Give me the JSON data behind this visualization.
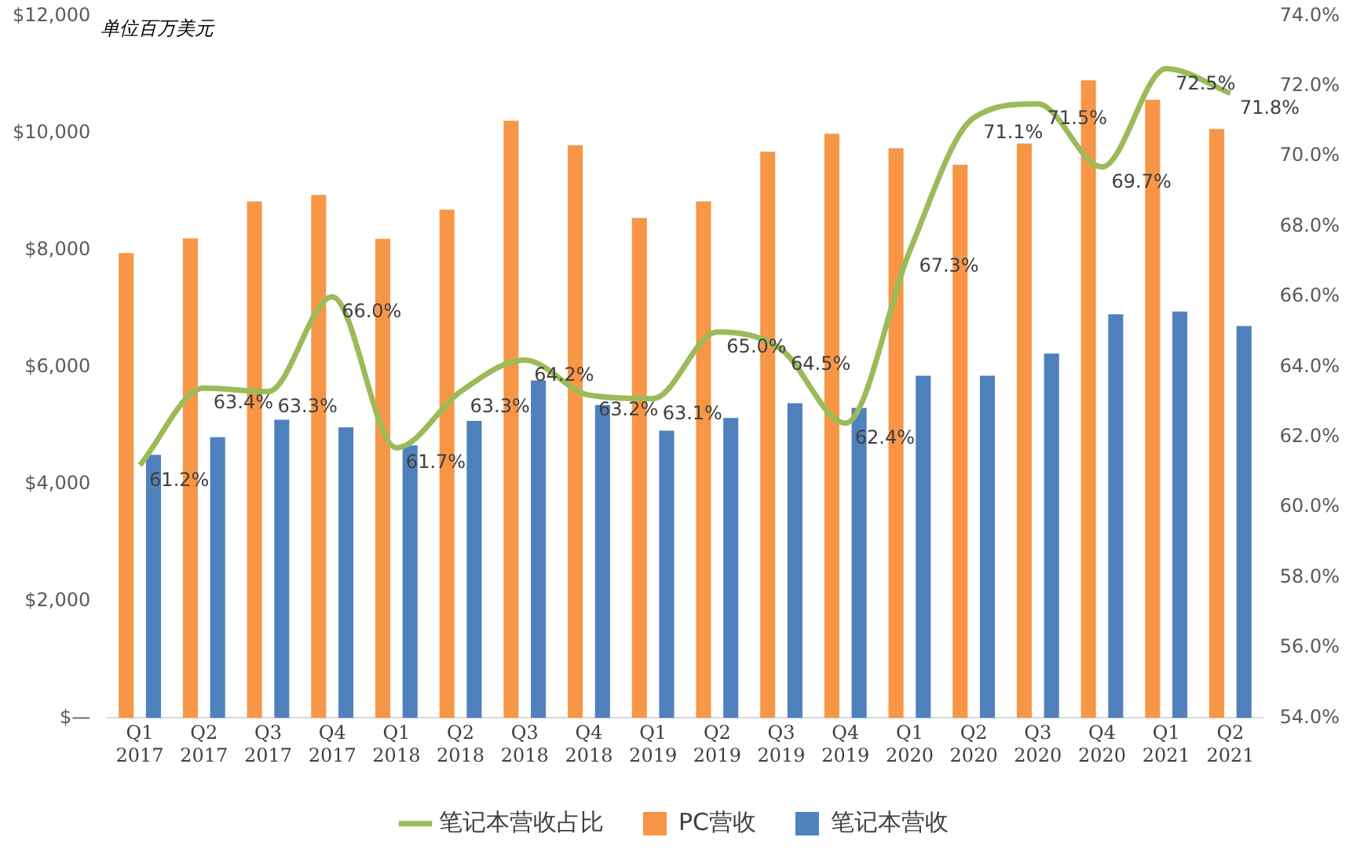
{
  "chart_data": {
    "type": "bar",
    "annotations": [
      "单位百万美元"
    ],
    "categories": [
      "Q1 2017",
      "Q2 2017",
      "Q3 2017",
      "Q4 2017",
      "Q1 2018",
      "Q2 2018",
      "Q3 2018",
      "Q4 2018",
      "Q1 2019",
      "Q2 2019",
      "Q3 2019",
      "Q4 2019",
      "Q1 2020",
      "Q2 2020",
      "Q3 2020",
      "Q4 2020",
      "Q1 2021",
      "Q2 2021"
    ],
    "series": [
      {
        "name": "PC营收",
        "color": "#f79646",
        "values": [
          7950,
          8200,
          8830,
          8940,
          8190,
          8690,
          10210,
          9790,
          8550,
          8830,
          9680,
          9990,
          9740,
          9460,
          9820,
          10900,
          10570,
          10070
        ]
      },
      {
        "name": "笔记本营收",
        "color": "#4f81bd",
        "values": [
          4500,
          4800,
          5100,
          4970,
          4660,
          5080,
          5770,
          5350,
          4910,
          5130,
          5380,
          5300,
          5850,
          5850,
          6230,
          6900,
          6950,
          6700
        ]
      },
      {
        "name": "笔记本营收占比",
        "type": "line",
        "axis": "y2",
        "color": "#9bbb59",
        "values": [
          61.2,
          63.4,
          63.3,
          66.0,
          61.7,
          63.3,
          64.2,
          63.2,
          63.1,
          65.0,
          64.5,
          62.4,
          67.3,
          71.1,
          71.5,
          69.7,
          72.5,
          71.8
        ],
        "value_labels": [
          "61.2%",
          "63.4%",
          "63.3%",
          "66.0%",
          "61.7%",
          "63.3%",
          "64.2%",
          "63.2%",
          "63.1%",
          "65.0%",
          "64.5%",
          "62.4%",
          "67.3%",
          "71.1%",
          "71.5%",
          "69.7%",
          "72.5%",
          "71.8%"
        ]
      }
    ],
    "ylim": [
      0,
      12000
    ],
    "yticks": [
      {
        "value": 0,
        "label": "$—"
      },
      {
        "value": 2000,
        "label": "$2,000"
      },
      {
        "value": 4000,
        "label": "$4,000"
      },
      {
        "value": 6000,
        "label": "$6,000"
      },
      {
        "value": 8000,
        "label": "$8,000"
      },
      {
        "value": 10000,
        "label": "$10,000"
      },
      {
        "value": 12000,
        "label": "$12,000"
      }
    ],
    "y2lim": [
      54,
      74
    ],
    "y2ticks": [
      {
        "value": 54,
        "label": "54.0%"
      },
      {
        "value": 56,
        "label": "56.0%"
      },
      {
        "value": 58,
        "label": "58.0%"
      },
      {
        "value": 60,
        "label": "60.0%"
      },
      {
        "value": 62,
        "label": "62.0%"
      },
      {
        "value": 64,
        "label": "64.0%"
      },
      {
        "value": 66,
        "label": "66.0%"
      },
      {
        "value": 68,
        "label": "68.0%"
      },
      {
        "value": 70,
        "label": "70.0%"
      },
      {
        "value": 72,
        "label": "72.0%"
      },
      {
        "value": 74,
        "label": "74.0%"
      }
    ],
    "grid": false,
    "legend": "bottom"
  }
}
